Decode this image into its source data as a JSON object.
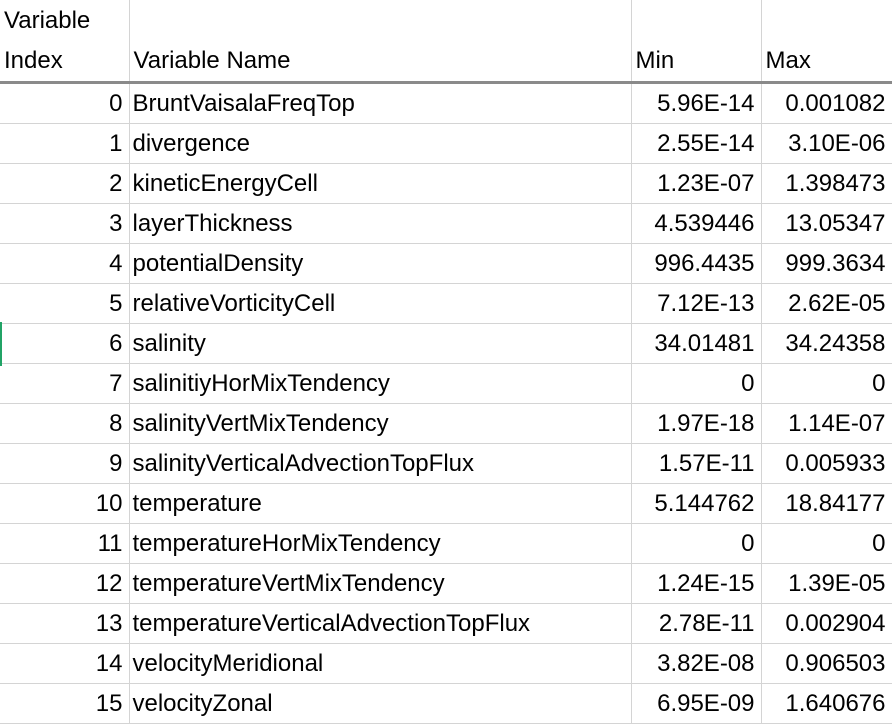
{
  "headers": {
    "index_line1": "Variable",
    "index_line2": "Index",
    "name": "Variable Name",
    "min": "Min",
    "max": "Max"
  },
  "rows": [
    {
      "index": "0",
      "name": "BruntVaisalaFreqTop",
      "min": "5.96E-14",
      "max": "0.001082"
    },
    {
      "index": "1",
      "name": "divergence",
      "min": "2.55E-14",
      "max": "3.10E-06"
    },
    {
      "index": "2",
      "name": "kineticEnergyCell",
      "min": "1.23E-07",
      "max": "1.398473"
    },
    {
      "index": "3",
      "name": "layerThickness",
      "min": "4.539446",
      "max": "13.05347"
    },
    {
      "index": "4",
      "name": "potentialDensity",
      "min": "996.4435",
      "max": "999.3634"
    },
    {
      "index": "5",
      "name": "relativeVorticityCell",
      "min": "7.12E-13",
      "max": "2.62E-05"
    },
    {
      "index": "6",
      "name": "salinity",
      "min": "34.01481",
      "max": "34.24358"
    },
    {
      "index": "7",
      "name": "salinitiyHorMixTendency",
      "min": "0",
      "max": "0"
    },
    {
      "index": "8",
      "name": "salinityVertMixTendency",
      "min": "1.97E-18",
      "max": "1.14E-07"
    },
    {
      "index": "9",
      "name": "salinityVerticalAdvectionTopFlux",
      "min": "1.57E-11",
      "max": "0.005933"
    },
    {
      "index": "10",
      "name": "temperature",
      "min": "5.144762",
      "max": "18.84177"
    },
    {
      "index": "11",
      "name": "temperatureHorMixTendency",
      "min": "0",
      "max": "0"
    },
    {
      "index": "12",
      "name": "temperatureVertMixTendency",
      "min": "1.24E-15",
      "max": "1.39E-05"
    },
    {
      "index": "13",
      "name": "temperatureVerticalAdvectionTopFlux",
      "min": "2.78E-11",
      "max": "0.002904"
    },
    {
      "index": "14",
      "name": "velocityMeridional",
      "min": "3.82E-08",
      "max": "0.906503"
    },
    {
      "index": "15",
      "name": "velocityZonal",
      "min": "6.95E-09",
      "max": "1.640676"
    }
  ],
  "colors": {
    "gridline": "#d4d4d4",
    "header_underline": "#8a8a8a",
    "selection_marker": "#21a366"
  }
}
